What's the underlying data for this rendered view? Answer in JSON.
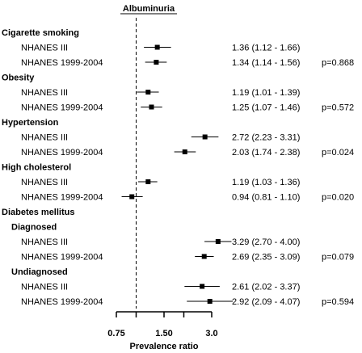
{
  "chart_data": {
    "type": "forest",
    "title": "Albuminuria",
    "xlabel": "Prevalence ratio",
    "x_scale": "log",
    "x_ticks": [
      0.75,
      1.5,
      3.0
    ],
    "x_tick_labels": [
      "0.75",
      "1.50",
      "3.0"
    ],
    "reference_line": 1.0,
    "groups": [
      {
        "label": "Cigarette smoking",
        "rows": [
          {
            "label": "NHANES III",
            "estimate": 1.36,
            "lower": 1.12,
            "upper": 1.66,
            "text": "1.36 (1.12 - 1.66)",
            "p": ""
          },
          {
            "label": "NHANES 1999-2004",
            "estimate": 1.34,
            "lower": 1.14,
            "upper": 1.56,
            "text": "1.34 (1.14 - 1.56)",
            "p": "p=0.868"
          }
        ]
      },
      {
        "label": "Obesity",
        "rows": [
          {
            "label": "NHANES III",
            "estimate": 1.19,
            "lower": 1.01,
            "upper": 1.39,
            "text": "1.19 (1.01 - 1.39)",
            "p": ""
          },
          {
            "label": "NHANES 1999-2004",
            "estimate": 1.25,
            "lower": 1.07,
            "upper": 1.46,
            "text": "1.25 (1.07 - 1.46)",
            "p": "p=0.572"
          }
        ]
      },
      {
        "label": "Hypertension",
        "rows": [
          {
            "label": "NHANES III",
            "estimate": 2.72,
            "lower": 2.23,
            "upper": 3.31,
            "text": "2.72 (2.23 - 3.31)",
            "p": ""
          },
          {
            "label": "NHANES 1999-2004",
            "estimate": 2.03,
            "lower": 1.74,
            "upper": 2.38,
            "text": "2.03 (1.74 - 2.38)",
            "p": "p=0.024"
          }
        ]
      },
      {
        "label": "High cholesterol",
        "rows": [
          {
            "label": "NHANES III",
            "estimate": 1.19,
            "lower": 1.03,
            "upper": 1.36,
            "text": "1.19 (1.03 - 1.36)",
            "p": ""
          },
          {
            "label": "NHANES 1999-2004",
            "estimate": 0.94,
            "lower": 0.81,
            "upper": 1.1,
            "text": "0.94 (0.81 - 1.10)",
            "p": "p=0.020"
          }
        ]
      },
      {
        "label": "Diabetes mellitus",
        "rows": []
      },
      {
        "label": "Diagnosed",
        "sub": true,
        "rows": [
          {
            "label": "NHANES III",
            "estimate": 3.29,
            "lower": 2.7,
            "upper": 4.0,
            "text": "3.29 (2.70 - 4.00)",
            "p": ""
          },
          {
            "label": "NHANES 1999-2004",
            "estimate": 2.69,
            "lower": 2.35,
            "upper": 3.09,
            "text": "2.69 (2.35 - 3.09)",
            "p": "p=0.079"
          }
        ]
      },
      {
        "label": "Undiagnosed",
        "sub": true,
        "rows": [
          {
            "label": "NHANES III",
            "estimate": 2.61,
            "lower": 2.02,
            "upper": 3.37,
            "text": "2.61 (2.02 - 3.37)",
            "p": ""
          },
          {
            "label": "NHANES 1999-2004",
            "estimate": 2.92,
            "lower": 2.09,
            "upper": 4.07,
            "text": "2.92 (2.09 - 4.07)",
            "p": "p=0.594"
          }
        ]
      }
    ]
  }
}
